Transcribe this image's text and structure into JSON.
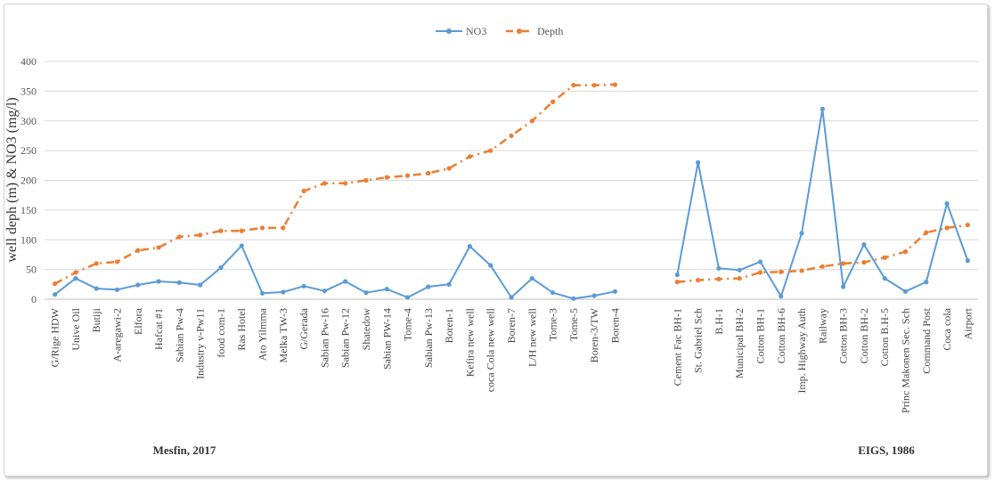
{
  "chart_data": {
    "type": "line",
    "ylabel": "well deph (m) & NO3 (mg/l)",
    "ylim": [
      0,
      400
    ],
    "yticks": [
      0,
      50,
      100,
      150,
      200,
      250,
      300,
      350,
      400
    ],
    "grid": true,
    "legend_position": "top-center",
    "legend": [
      "NO3",
      "Depth"
    ],
    "colors": {
      "NO3": "#5b9bd5",
      "Depth": "#ed7d31"
    },
    "groups": [
      {
        "label": "Mesfin, 2017",
        "categories": [
          "G/Rige HDW",
          "Unive Oil",
          "Butiji",
          "A-aregawi-2",
          "Elfora",
          "Hafcat #1",
          "Sabian Pw-4",
          "Industry v-Pw11",
          "food com-1",
          "Ras Hotel",
          "Ato Yilmma",
          "Melka TW-3",
          "G/Gerada",
          "Sabian Pw-16",
          "Sabian Pw-12",
          "Shatedow",
          "Sabian PW-14",
          "Tome-4",
          "Sabian Pw-13",
          "Boren-1",
          "Kefira new well",
          "coca Cola new well",
          "Boren-7",
          "L/H new well",
          "Tome-3",
          "Tome-5",
          "Boren-3/TW",
          "Boren-4"
        ],
        "series": [
          {
            "name": "NO3",
            "values": [
              8,
              35,
              18,
              16,
              24,
              30,
              28,
              24,
              53,
              90,
              10,
              12,
              22,
              14,
              30,
              11,
              17,
              3,
              21,
              25,
              89,
              57,
              3,
              35,
              11,
              1,
              6,
              13
            ]
          },
          {
            "name": "Depth",
            "values": [
              26,
              45,
              60,
              63,
              82,
              87,
              105,
              108,
              115,
              115,
              120,
              120,
              182,
              195,
              195,
              200,
              205,
              208,
              212,
              220,
              240,
              250,
              275,
              300,
              332,
              360,
              360,
              361
            ]
          }
        ]
      },
      {
        "label": "EIGS, 1986",
        "categories": [
          "Cement Fac BH-1",
          "St. Gabriel Sch",
          "B.H-1",
          "Municipal BH-2",
          "Cotton BH-1",
          "Cotton BH-6",
          "Imp. Highway Auth",
          "Railway",
          "Cotton BH-3",
          "Cotton BH-2",
          "Cotton B.H-5",
          "Princ Makonen Sec. Sch",
          "Command Post",
          "Coca cola",
          "Airport"
        ],
        "series": [
          {
            "name": "NO3",
            "values": [
              41,
              230,
              52,
              49,
              63,
              5,
              111,
              320,
              21,
              92,
              35,
              13,
              29,
              161,
              65
            ]
          },
          {
            "name": "Depth",
            "values": [
              29,
              32,
              34,
              35,
              45,
              46,
              48,
              55,
              60,
              62,
              70,
              80,
              112,
              120,
              125
            ]
          }
        ]
      }
    ]
  }
}
